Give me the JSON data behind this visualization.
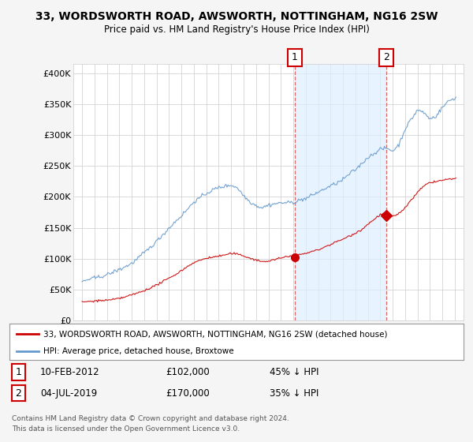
{
  "title": "33, WORDSWORTH ROAD, AWSWORTH, NOTTINGHAM, NG16 2SW",
  "subtitle": "Price paid vs. HM Land Registry's House Price Index (HPI)",
  "background_color": "#f5f5f5",
  "plot_bg_color": "#ffffff",
  "ylabel_ticks": [
    "£0",
    "£50K",
    "£100K",
    "£150K",
    "£200K",
    "£250K",
    "£300K",
    "£350K",
    "£400K"
  ],
  "ytick_values": [
    0,
    50000,
    100000,
    150000,
    200000,
    250000,
    300000,
    350000,
    400000
  ],
  "ylim": [
    0,
    415000
  ],
  "legend_line1": "33, WORDSWORTH ROAD, AWSWORTH, NOTTINGHAM, NG16 2SW (detached house)",
  "legend_line2": "HPI: Average price, detached house, Broxtowe",
  "annotation1_label": "1",
  "annotation1_date": "10-FEB-2012",
  "annotation1_price": "£102,000",
  "annotation1_hpi": "45% ↓ HPI",
  "annotation2_label": "2",
  "annotation2_date": "04-JUL-2019",
  "annotation2_price": "£170,000",
  "annotation2_hpi": "35% ↓ HPI",
  "footer1": "Contains HM Land Registry data © Crown copyright and database right 2024.",
  "footer2": "This data is licensed under the Open Government Licence v3.0.",
  "red_color": "#cc0000",
  "blue_color": "#6699cc",
  "shade_color": "#ddeeff",
  "ann_box_edge": "#cc0000",
  "ann_vline_color": "#dd6666",
  "ann1_x": 2012.1,
  "ann1_y": 102000,
  "ann2_x": 2019.5,
  "ann2_y": 170000,
  "xlim_min": 1994.3,
  "xlim_max": 2025.7
}
